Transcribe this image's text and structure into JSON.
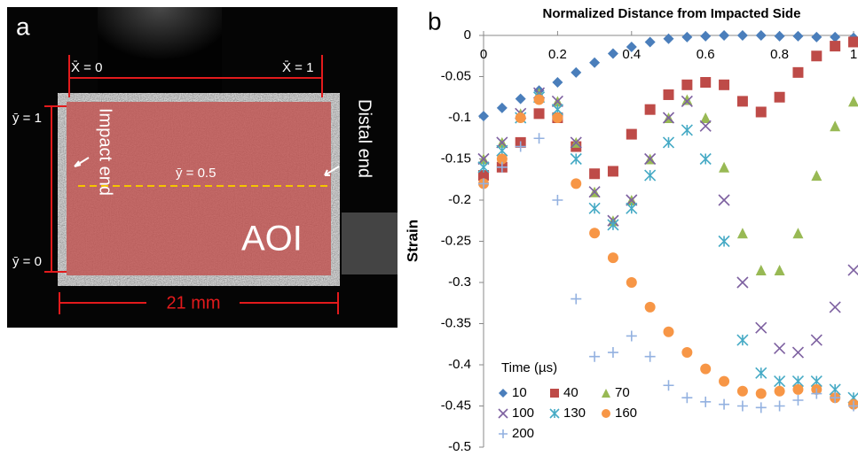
{
  "panel_a": {
    "label": "a",
    "x0": "X̄ = 0",
    "x1": "X̄ = 1",
    "y1": "ȳ = 1",
    "y05": "ȳ = 0.5",
    "y0": "ȳ = 0",
    "impact": "Impact end",
    "distal": "Distal end",
    "aoi": "AOI",
    "length": "21 mm"
  },
  "panel_b": {
    "label": "b"
  },
  "chart_data": {
    "type": "scatter",
    "title": "Normalized Distance from Impacted Side",
    "y_label": "Strain",
    "x": [
      0,
      0.05,
      0.1,
      0.15,
      0.2,
      0.25,
      0.3,
      0.35,
      0.4,
      0.45,
      0.5,
      0.55,
      0.6,
      0.65,
      0.7,
      0.75,
      0.8,
      0.85,
      0.9,
      0.95,
      1
    ],
    "xlim": [
      0,
      1
    ],
    "xticks": [
      0,
      0.2,
      0.4,
      0.6,
      0.8,
      1
    ],
    "ylim": [
      -0.5,
      0
    ],
    "yticks": [
      0,
      -0.05,
      -0.1,
      -0.15,
      -0.2,
      -0.25,
      -0.3,
      -0.35,
      -0.4,
      -0.45,
      -0.5
    ],
    "legend_title": "Time (µs)",
    "legend": "lower left",
    "series": [
      {
        "name": "10",
        "color": "#4a7ebb",
        "marker": "diamond",
        "values": [
          -0.098,
          -0.088,
          -0.077,
          -0.067,
          -0.057,
          -0.045,
          -0.033,
          -0.022,
          -0.014,
          -0.008,
          -0.004,
          -0.002,
          -0.001,
          0,
          0,
          0,
          -0.001,
          -0.001,
          -0.002,
          -0.002,
          -0.003
        ]
      },
      {
        "name": "40",
        "color": "#be4b48",
        "marker": "square",
        "values": [
          -0.17,
          -0.16,
          -0.13,
          -0.095,
          -0.1,
          -0.135,
          -0.168,
          -0.165,
          -0.12,
          -0.09,
          -0.072,
          -0.06,
          -0.057,
          -0.06,
          -0.08,
          -0.093,
          -0.075,
          -0.045,
          -0.025,
          -0.013,
          -0.008
        ]
      },
      {
        "name": "70",
        "color": "#98b954",
        "marker": "triangle",
        "values": [
          -0.15,
          -0.13,
          -0.095,
          -0.07,
          -0.08,
          -0.13,
          -0.19,
          -0.225,
          -0.2,
          -0.15,
          -0.1,
          -0.078,
          -0.1,
          -0.16,
          -0.24,
          -0.285,
          -0.285,
          -0.24,
          -0.17,
          -0.11,
          -0.08
        ]
      },
      {
        "name": "100",
        "color": "#7d60a0",
        "marker": "x",
        "values": [
          -0.15,
          -0.13,
          -0.095,
          -0.07,
          -0.08,
          -0.13,
          -0.19,
          -0.225,
          -0.2,
          -0.15,
          -0.1,
          -0.08,
          -0.11,
          -0.2,
          -0.3,
          -0.355,
          -0.38,
          -0.385,
          -0.37,
          -0.33,
          -0.285
        ]
      },
      {
        "name": "130",
        "color": "#46aac5",
        "marker": "asterisk",
        "values": [
          -0.16,
          -0.14,
          -0.1,
          -0.075,
          -0.09,
          -0.15,
          -0.21,
          -0.23,
          -0.21,
          -0.17,
          -0.13,
          -0.115,
          -0.15,
          -0.25,
          -0.37,
          -0.41,
          -0.42,
          -0.42,
          -0.42,
          -0.43,
          -0.44
        ]
      },
      {
        "name": "160",
        "color": "#f79646",
        "marker": "circle",
        "values": [
          -0.18,
          -0.15,
          -0.1,
          -0.078,
          -0.1,
          -0.18,
          -0.24,
          -0.27,
          -0.3,
          -0.33,
          -0.36,
          -0.385,
          -0.405,
          -0.42,
          -0.432,
          -0.435,
          -0.432,
          -0.43,
          -0.43,
          -0.44,
          -0.448
        ]
      },
      {
        "name": "200",
        "color": "#93b1e0",
        "marker": "plus",
        "values": [
          -0.18,
          -0.16,
          -0.135,
          -0.125,
          -0.2,
          -0.32,
          -0.39,
          -0.385,
          -0.365,
          -0.39,
          -0.425,
          -0.44,
          -0.445,
          -0.448,
          -0.45,
          -0.452,
          -0.45,
          -0.443,
          -0.435,
          -0.44,
          -0.45
        ]
      }
    ]
  }
}
